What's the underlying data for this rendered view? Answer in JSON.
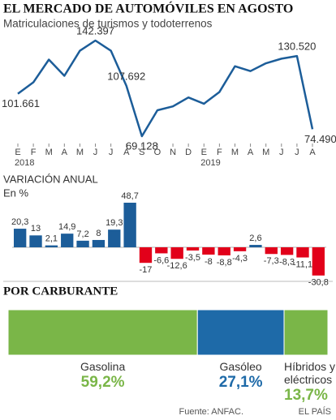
{
  "chart_data": [
    {
      "type": "line",
      "title": "EL MERCADO DE AUTOMÓVILES EN AGOSTO",
      "subtitle": "Matriculaciones de turismos y todoterrenos",
      "categories": [
        "E",
        "F",
        "M",
        "A",
        "M",
        "J",
        "J",
        "A",
        "S",
        "O",
        "N",
        "D",
        "E",
        "F",
        "M",
        "A",
        "M",
        "J",
        "J",
        "A"
      ],
      "years": [
        "2018",
        "2019"
      ],
      "values": [
        101661,
        110400,
        127800,
        115400,
        134600,
        142397,
        134600,
        107692,
        69128,
        89000,
        92000,
        98800,
        94000,
        103000,
        122700,
        119000,
        125000,
        128500,
        130520,
        74490
      ],
      "value_labels": [
        "101.661",
        null,
        null,
        null,
        null,
        "142.397",
        null,
        "107.692",
        "69.128",
        null,
        null,
        null,
        null,
        null,
        null,
        null,
        null,
        null,
        "130.520",
        "74.490"
      ],
      "color": "#1c5d99"
    },
    {
      "type": "bar",
      "title": "VARIACIÓN ANUAL",
      "subtitle": "En %",
      "values": [
        20.3,
        13,
        2.1,
        14.9,
        7.2,
        8,
        19.3,
        48.7,
        -17,
        -6.6,
        -12.6,
        -3.5,
        -8,
        -8.8,
        -4.3,
        2.6,
        -7.3,
        -8.3,
        -11.1,
        -30.8
      ],
      "value_labels": [
        "20,3",
        "13",
        "2,1",
        "14,9",
        "7,2",
        "8",
        "19,3",
        "48,7",
        "-17",
        "-6,6",
        "-12,6",
        "-3,5",
        "-8",
        "-8,8",
        "-4,3",
        "2,6",
        "-7,3",
        "-8,3",
        "-11,1",
        "-30,8"
      ],
      "positive_color": "#1c5d99",
      "negative_color": "#e2001a"
    },
    {
      "type": "stacked_bar",
      "title": "POR CARBURANTE",
      "series": [
        {
          "name": "Gasolina",
          "color": "#7ab648",
          "values": [
            59.2
          ],
          "value_labels": [
            "59,2%"
          ]
        },
        {
          "name": "Gasóleo",
          "color": "#1e6aa8",
          "values": [
            27.1
          ],
          "value_labels": [
            "27,1%"
          ]
        },
        {
          "name": "Híbridos y eléctricos",
          "color": "#7ab648",
          "values": [
            13.7
          ],
          "value_labels": [
            "13,7%"
          ]
        }
      ],
      "source": "Fuente: ANFAC.",
      "credit": "EL PAÍS"
    }
  ]
}
